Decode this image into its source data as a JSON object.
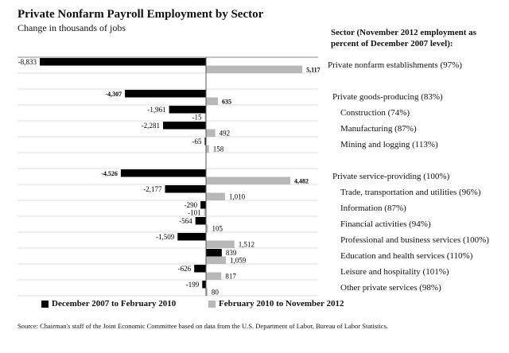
{
  "chart_data": {
    "type": "bar",
    "orientation": "horizontal",
    "title": "Private Nonfarm Payroll Employment by Sector",
    "subtitle": "Change in thousands of jobs",
    "category_header": "Sector (November 2012 employment as percent of December 2007 level):",
    "categories": [
      {
        "label": "Private nonfarm establishments (97%)",
        "indent": 0
      },
      null,
      {
        "label": "Private goods-producing (83%)",
        "indent": 1
      },
      {
        "label": "Construction (74%)",
        "indent": 2
      },
      {
        "label": "Manufacturing (87%)",
        "indent": 2
      },
      {
        "label": "Mining and logging (113%)",
        "indent": 2
      },
      null,
      {
        "label": "Private service-providing (100%)",
        "indent": 1
      },
      {
        "label": "Trade, transportation and utilities (96%)",
        "indent": 2
      },
      {
        "label": "Information (87%)",
        "indent": 2
      },
      {
        "label": "Financial activities (94%)",
        "indent": 2
      },
      {
        "label": "Professional and business services (100%)",
        "indent": 2
      },
      {
        "label": "Education and health services (110%)",
        "indent": 2
      },
      {
        "label": "Leisure and hospitality (101%)",
        "indent": 2
      },
      {
        "label": "Other private services (98%)",
        "indent": 2
      }
    ],
    "series": [
      {
        "name": "December 2007 to February 2010",
        "color": "#000000",
        "values": [
          -8833,
          null,
          -4307,
          -1961,
          -2281,
          -65,
          null,
          -4526,
          -2177,
          -290,
          -564,
          -1509,
          839,
          -626,
          -199
        ],
        "bold": [
          false,
          null,
          true,
          false,
          false,
          false,
          null,
          true,
          false,
          false,
          false,
          false,
          false,
          false,
          false
        ]
      },
      {
        "name": "February 2010 to November 2012",
        "color": "#b8b8b8",
        "values": [
          5117,
          null,
          635,
          -15,
          492,
          158,
          null,
          4482,
          1010,
          -101,
          105,
          1512,
          1059,
          817,
          80
        ],
        "bold": [
          true,
          null,
          true,
          false,
          false,
          false,
          null,
          true,
          false,
          false,
          false,
          false,
          false,
          false,
          false
        ]
      }
    ],
    "xlim": [
      -8833,
      5117
    ],
    "grid": true,
    "legend": "bottom"
  },
  "source": "Source: Chairman's staff of the Joint Economic Committee based on data from the U.S. Department of Labor, Bureau of Labor Statistics."
}
